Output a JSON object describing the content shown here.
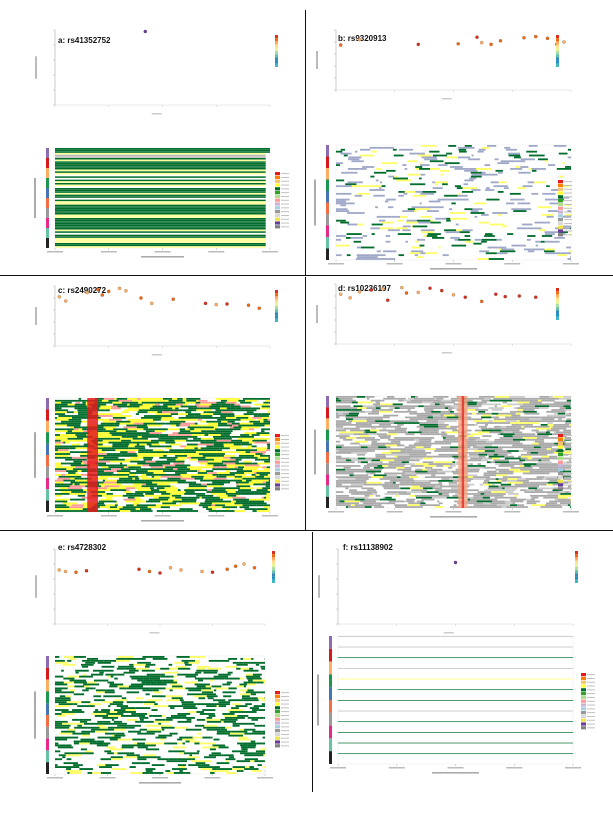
{
  "figure": {
    "panels": [
      {
        "id": "a",
        "title": "a: rs41352752",
        "pattern": "uniform",
        "density": 0.0
      },
      {
        "id": "b",
        "title": "b: rs9320913",
        "pattern": "sparse",
        "density": 0.2
      },
      {
        "id": "c",
        "title": "c: rs2490272",
        "pattern": "dense",
        "density": 0.85
      },
      {
        "id": "d",
        "title": "d: rs10236197",
        "pattern": "grey",
        "density": 0.8
      },
      {
        "id": "e",
        "title": "e: rs4728302",
        "pattern": "medium",
        "density": 0.55
      },
      {
        "id": "f",
        "title": "f: rs11138902",
        "pattern": "lines",
        "density": 0.05
      }
    ],
    "ld_colors": [
      "#d7301f",
      "#f16913",
      "#fdae61",
      "#fee08b",
      "#e6f598",
      "#abdda4",
      "#66c2a5",
      "#3288bd",
      "#1d91c0",
      "#41b6c4"
    ],
    "state_colors": [
      "#e41a1c",
      "#ff7f00",
      "#fdbf6f",
      "#ffff33",
      "#006d2c",
      "#33a02c",
      "#b2df8a",
      "#fb9a99",
      "#cab2d6",
      "#a6cee3",
      "#999999",
      "#d9d9d9",
      "#f0e442",
      "#6a3d9a",
      "#808080"
    ],
    "track_colors": [
      "#8c6bb1",
      "#d7191c",
      "#fdae61",
      "#1a9850",
      "#4575b4",
      "#f46d43",
      "#999999",
      "#e7298a",
      "#66c2a5",
      "#222222"
    ]
  },
  "chart_data": [
    {
      "type": "scatter",
      "panel": "a",
      "title": "a: rs41352752",
      "points": [
        [
          0.42,
          9.8
        ]
      ],
      "ylim": [
        0,
        10
      ]
    },
    {
      "type": "scatter",
      "panel": "b",
      "title": "b: rs9320913",
      "points": [
        [
          0.02,
          7.5
        ],
        [
          0.1,
          8.4
        ],
        [
          0.35,
          7.6
        ],
        [
          0.52,
          7.7
        ],
        [
          0.6,
          8.8
        ],
        [
          0.62,
          7.9
        ],
        [
          0.66,
          7.6
        ],
        [
          0.7,
          8.2
        ],
        [
          0.8,
          8.7
        ],
        [
          0.85,
          8.9
        ],
        [
          0.9,
          8.6
        ],
        [
          0.94,
          7.6
        ],
        [
          0.97,
          8.0
        ]
      ],
      "ylim": [
        0,
        10
      ]
    },
    {
      "type": "scatter",
      "panel": "c",
      "title": "c: rs2490272",
      "points": [
        [
          0.02,
          8.2
        ],
        [
          0.05,
          7.5
        ],
        [
          0.15,
          8.9
        ],
        [
          0.2,
          9.4
        ],
        [
          0.22,
          8.5
        ],
        [
          0.25,
          9.1
        ],
        [
          0.3,
          9.6
        ],
        [
          0.33,
          9.2
        ],
        [
          0.4,
          8.0
        ],
        [
          0.45,
          7.1
        ],
        [
          0.55,
          7.8
        ],
        [
          0.7,
          7.1
        ],
        [
          0.75,
          6.9
        ],
        [
          0.8,
          7.0
        ],
        [
          0.9,
          6.8
        ],
        [
          0.95,
          6.3
        ]
      ],
      "ylim": [
        0,
        10
      ]
    },
    {
      "type": "scatter",
      "panel": "d",
      "title": "d: rs10236197",
      "points": [
        [
          0.02,
          8.3
        ],
        [
          0.06,
          7.7
        ],
        [
          0.1,
          8.7
        ],
        [
          0.15,
          9.0
        ],
        [
          0.2,
          9.2
        ],
        [
          0.22,
          7.3
        ],
        [
          0.28,
          9.4
        ],
        [
          0.3,
          8.5
        ],
        [
          0.35,
          8.6
        ],
        [
          0.4,
          9.3
        ],
        [
          0.45,
          8.9
        ],
        [
          0.5,
          8.2
        ],
        [
          0.55,
          7.8
        ],
        [
          0.62,
          7.1
        ],
        [
          0.68,
          8.3
        ],
        [
          0.72,
          7.9
        ],
        [
          0.78,
          8.0
        ],
        [
          0.85,
          7.8
        ]
      ],
      "ylim": [
        0,
        10
      ]
    },
    {
      "type": "scatter",
      "panel": "e",
      "title": "e: rs4728302",
      "points": [
        [
          0.02,
          7.2
        ],
        [
          0.05,
          7.0
        ],
        [
          0.1,
          6.9
        ],
        [
          0.15,
          7.1
        ],
        [
          0.4,
          7.3
        ],
        [
          0.45,
          7.0
        ],
        [
          0.5,
          6.8
        ],
        [
          0.55,
          7.5
        ],
        [
          0.6,
          7.2
        ],
        [
          0.7,
          7.0
        ],
        [
          0.75,
          6.9
        ],
        [
          0.82,
          7.3
        ],
        [
          0.86,
          7.7
        ],
        [
          0.9,
          8.0
        ],
        [
          0.95,
          7.5
        ]
      ],
      "ylim": [
        0,
        10
      ]
    },
    {
      "type": "scatter",
      "panel": "f",
      "title": "f: rs11138902",
      "points": [
        [
          0.5,
          8.2
        ]
      ],
      "ylim": [
        0,
        10
      ]
    }
  ]
}
